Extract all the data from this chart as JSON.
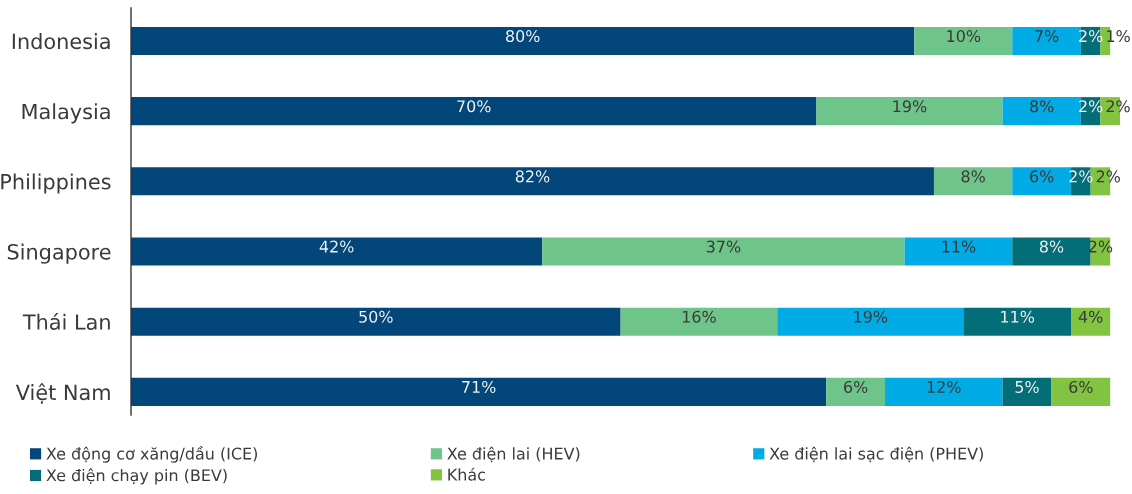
{
  "chart_data": {
    "type": "bar",
    "orientation": "horizontal",
    "stacked": true,
    "categories": [
      "Indonesia",
      "Malaysia",
      "Philippines",
      "Singapore",
      "Thái Lan",
      "Việt Nam"
    ],
    "series": [
      {
        "name": "Xe động cơ xăng/dầu (ICE)",
        "color": "#03477a",
        "values": [
          80,
          70,
          82,
          42,
          50,
          71
        ],
        "value_labels": [
          "80%",
          "70%",
          "82%",
          "42%",
          "50%",
          "71%"
        ]
      },
      {
        "name": "Xe điện lai (HEV)",
        "color": "#6fc48a",
        "values": [
          10,
          19,
          8,
          37,
          16,
          6
        ],
        "value_labels": [
          "10%",
          "19%",
          "8%",
          "37%",
          "16%",
          "6%"
        ]
      },
      {
        "name": "Xe điện lai sạc điện (PHEV)",
        "color": "#00abe6",
        "values": [
          7,
          8,
          6,
          11,
          19,
          12
        ],
        "value_labels": [
          "7%",
          "8%",
          "6%",
          "11%",
          "19%",
          "12%"
        ]
      },
      {
        "name": "Xe điện chạy pin (BEV)",
        "color": "#046e78",
        "values": [
          2,
          2,
          2,
          8,
          11,
          5
        ],
        "value_labels": [
          "2%",
          "2%",
          "2%",
          "8%",
          "11%",
          "5%"
        ]
      },
      {
        "name": "Khác",
        "color": "#82c341",
        "values": [
          1,
          2,
          2,
          2,
          4,
          6
        ],
        "value_labels": [
          "1%",
          "2%",
          "2%",
          "2%",
          "4%",
          "6%"
        ]
      }
    ],
    "xlim": [
      0,
      101
    ],
    "tick_labels": "y",
    "legend": "bottom",
    "grid": false
  }
}
